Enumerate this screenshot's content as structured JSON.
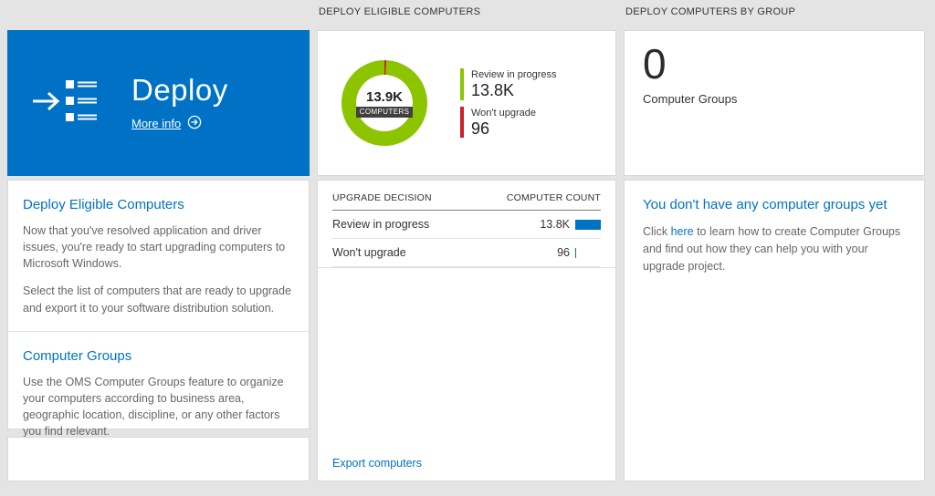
{
  "headers": {
    "middle": "DEPLOY ELIGIBLE COMPUTERS",
    "right": "DEPLOY COMPUTERS BY GROUP"
  },
  "deploy_tile": {
    "title": "Deploy",
    "more_info_label": "More info"
  },
  "left_panel": {
    "sections": [
      {
        "heading": "Deploy Eligible Computers",
        "paragraphs": [
          "Now that you've resolved application and driver issues, you're ready to start upgrading computers to Microsoft Windows.",
          "Select the list of computers that are ready to upgrade and export it to your software distribution solution."
        ]
      },
      {
        "heading": "Computer Groups",
        "paragraphs": [
          "Use the OMS Computer Groups feature to organize your computers according to business area, geographic location, discipline, or any other factors you find relevant."
        ]
      }
    ]
  },
  "donut_card": {
    "center_value": "13.9K",
    "center_label": "COMPUTERS",
    "legend": [
      {
        "label": "Review in progress",
        "value": "13.8K",
        "color": "#8cc400"
      },
      {
        "label": "Won't upgrade",
        "value": "96",
        "color": "#cf2027"
      }
    ]
  },
  "table": {
    "col_decision": "UPGRADE DECISION",
    "col_count": "COMPUTER COUNT",
    "rows": [
      {
        "decision": "Review in progress",
        "count": "13.8K",
        "bar_pct": 100
      },
      {
        "decision": "Won't upgrade",
        "count": "96",
        "bar_pct": 3
      }
    ],
    "export_link": "Export computers"
  },
  "groups_tile": {
    "value": "0",
    "label": "Computer Groups"
  },
  "groups_panel": {
    "heading": "You don't have any computer groups yet",
    "text_before": "Click ",
    "link_text": "here",
    "text_after": " to learn how to create Computer Groups and find out how they can help you with your upgrade project."
  },
  "colors": {
    "accent_blue": "#0072c6",
    "donut_green": "#8cc400",
    "donut_red": "#cf2027",
    "count_bar_blue": "#0072c6"
  },
  "chart_data": [
    {
      "type": "pie",
      "title": "DEPLOY ELIGIBLE COMPUTERS",
      "center_value": "13.9K",
      "center_label": "COMPUTERS",
      "categories": [
        "Review in progress",
        "Won't upgrade"
      ],
      "values": [
        13800,
        96
      ],
      "colors": [
        "#8cc400",
        "#cf2027"
      ],
      "legend_position": "right"
    },
    {
      "type": "table",
      "columns": [
        "UPGRADE DECISION",
        "COMPUTER COUNT"
      ],
      "rows": [
        [
          "Review in progress",
          "13.8K"
        ],
        [
          "Won't upgrade",
          "96"
        ]
      ]
    }
  ]
}
